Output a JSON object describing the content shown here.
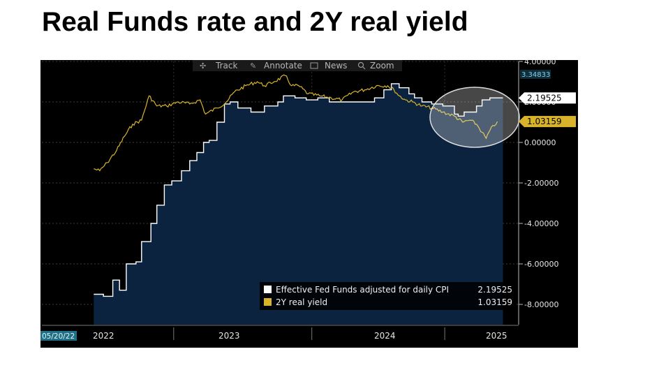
{
  "slide": {
    "title": "Real Funds rate and 2Y real yield"
  },
  "toolbar": {
    "track_label": "Track",
    "annotate_label": "Annotate",
    "news_label": "News",
    "zoom_label": "Zoom"
  },
  "chart_data": {
    "type": "area",
    "title": "Real Funds rate and 2Y real yield",
    "xlabel": "",
    "ylabel": "",
    "ylim": [
      -9,
      4
    ],
    "grid": true,
    "legend_position": "bottom-right",
    "y_ticks": [
      {
        "value": 4,
        "label": "4.00000"
      },
      {
        "value": 2,
        "label": "2.00000"
      },
      {
        "value": 0,
        "label": "0.00000"
      },
      {
        "value": -2,
        "label": "-2.00000"
      },
      {
        "value": -4,
        "label": "-4.00000"
      },
      {
        "value": -6,
        "label": "-6.00000"
      },
      {
        "value": -8,
        "label": "-8.00000"
      }
    ],
    "x_ticks": [
      {
        "value": "2022",
        "label": "2022"
      },
      {
        "value": "2023",
        "label": "2023"
      },
      {
        "value": "2024",
        "label": "2024"
      },
      {
        "value": "2025",
        "label": "2025"
      }
    ],
    "start_date_label": "05/20/22",
    "high_marker": {
      "value": 3.34833,
      "label": "3.34833"
    },
    "series": [
      {
        "name": "Effective Fed  Funds adjusted for daily CPI",
        "type": "area",
        "color": "#ffffff",
        "fill": "#0c2340",
        "last_value": 2.19525,
        "last_label": "2.19525",
        "x": [
          "2022-05-20",
          "2022-06-15",
          "2022-07-10",
          "2022-07-28",
          "2022-08-15",
          "2022-09-10",
          "2022-09-25",
          "2022-10-20",
          "2022-11-05",
          "2022-11-25",
          "2022-12-15",
          "2023-01-10",
          "2023-02-01",
          "2023-02-20",
          "2023-03-10",
          "2023-03-25",
          "2023-04-15",
          "2023-05-05",
          "2023-05-20",
          "2023-06-10",
          "2023-06-25",
          "2023-07-15",
          "2023-08-01",
          "2023-08-20",
          "2023-09-10",
          "2023-09-25",
          "2023-10-10",
          "2023-11-10",
          "2023-12-10",
          "2024-01-10",
          "2024-02-10",
          "2024-03-10",
          "2024-04-10",
          "2024-05-10",
          "2024-06-10",
          "2024-07-05",
          "2024-07-25",
          "2024-08-15",
          "2024-09-10",
          "2024-09-25",
          "2024-10-15",
          "2024-11-10",
          "2024-12-10",
          "2025-01-10",
          "2025-01-20",
          "2025-02-05",
          "2025-02-20",
          "2025-03-10",
          "2025-03-25",
          "2025-04-15",
          "2025-05-05"
        ],
        "values": [
          -7.5,
          -7.6,
          -6.8,
          -7.3,
          -6.0,
          -5.9,
          -4.9,
          -4.0,
          -3.1,
          -2.1,
          -1.9,
          -1.4,
          -0.9,
          -0.5,
          0.0,
          0.1,
          1.0,
          1.9,
          2.0,
          1.7,
          1.7,
          1.5,
          1.5,
          1.8,
          1.8,
          2.0,
          2.3,
          2.2,
          2.1,
          2.2,
          2.0,
          2.0,
          2.0,
          2.0,
          2.2,
          2.6,
          2.9,
          2.7,
          2.4,
          2.2,
          2.0,
          1.9,
          1.8,
          1.4,
          1.3,
          1.5,
          1.5,
          1.8,
          2.1,
          2.2,
          2.2
        ]
      },
      {
        "name": "2Y real yield",
        "type": "line",
        "color": "#d9b42a",
        "last_value": 1.03159,
        "last_label": "1.03159",
        "x": [
          "2022-05-20",
          "2022-06-05",
          "2022-06-25",
          "2022-07-20",
          "2022-08-10",
          "2022-09-01",
          "2022-09-25",
          "2022-10-15",
          "2022-11-05",
          "2022-12-01",
          "2023-01-01",
          "2023-02-01",
          "2023-03-01",
          "2023-03-15",
          "2023-04-15",
          "2023-05-10",
          "2023-06-01",
          "2023-07-01",
          "2023-08-01",
          "2023-08-20",
          "2023-09-15",
          "2023-10-15",
          "2023-11-01",
          "2023-11-20",
          "2023-12-15",
          "2024-01-15",
          "2024-02-15",
          "2024-03-15",
          "2024-04-15",
          "2024-05-15",
          "2024-06-15",
          "2024-07-15",
          "2024-08-01",
          "2024-08-15",
          "2024-09-01",
          "2024-09-20",
          "2024-10-15",
          "2024-11-10",
          "2024-12-10",
          "2025-01-10",
          "2025-02-01",
          "2025-02-20",
          "2025-03-10",
          "2025-03-25",
          "2025-04-05",
          "2025-04-15",
          "2025-05-05"
        ],
        "values": [
          -1.3,
          -1.4,
          -1.0,
          -0.4,
          0.3,
          0.9,
          1.1,
          2.3,
          1.8,
          1.8,
          2.0,
          1.9,
          2.1,
          1.4,
          1.7,
          2.0,
          2.5,
          2.8,
          3.0,
          2.8,
          3.0,
          3.3,
          2.8,
          2.8,
          2.4,
          2.3,
          2.2,
          2.1,
          2.5,
          2.6,
          2.8,
          2.8,
          2.6,
          2.3,
          2.1,
          2.0,
          1.8,
          1.7,
          1.5,
          1.3,
          1.0,
          1.1,
          0.9,
          0.5,
          0.2,
          0.6,
          1.03
        ]
      }
    ]
  }
}
